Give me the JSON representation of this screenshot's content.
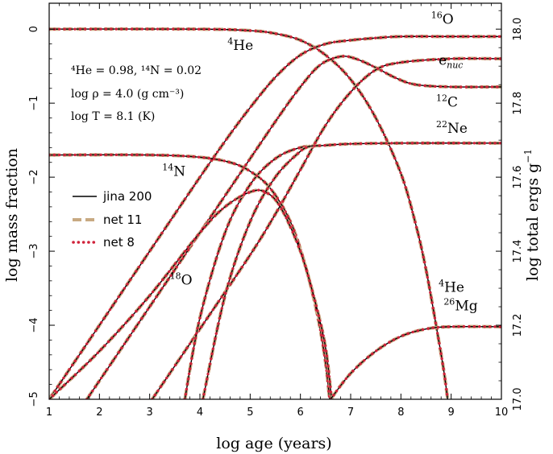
{
  "chart_data": {
    "type": "line",
    "xlabel": "log age (years)",
    "ylabel": "log mass fraction",
    "y2label": "log total ergs g",
    "y2label_sup": "−1",
    "xlim": [
      1,
      10
    ],
    "ylim": [
      -5,
      0.35
    ],
    "y2lim": [
      17.0,
      18.07
    ],
    "xticks": [
      1,
      2,
      3,
      4,
      5,
      6,
      7,
      8,
      9,
      10
    ],
    "yticks": [
      0,
      -1,
      -2,
      -3,
      -4,
      -5
    ],
    "y2ticks": [
      17.0,
      17.2,
      17.4,
      17.6,
      17.8,
      18.0
    ],
    "grid": false,
    "legend_position": "left-middle",
    "colors": {
      "jina200": "#000000",
      "net11": "#c8aa82",
      "net8": "#d0223a"
    },
    "annotations": [
      "⁴He = 0.98, ¹⁴N = 0.02",
      "log ρ = 4.0 (g cm⁻³)",
      "log T = 8.1 (K)"
    ],
    "series": [
      {
        "name": "jina 200",
        "style": "solid"
      },
      {
        "name": "net 11",
        "style": "dashed"
      },
      {
        "name": "net 8",
        "style": "dotted"
      }
    ],
    "curves": [
      {
        "id": "He4",
        "label_iso": "4",
        "label_el": "He",
        "points": [
          [
            1,
            0
          ],
          [
            4,
            0
          ],
          [
            5,
            -0.02
          ],
          [
            5.5,
            -0.06
          ],
          [
            6,
            -0.15
          ],
          [
            6.5,
            -0.35
          ],
          [
            7,
            -0.68
          ],
          [
            7.5,
            -1.2
          ],
          [
            8,
            -1.95
          ],
          [
            8.3,
            -2.65
          ],
          [
            8.5,
            -3.25
          ],
          [
            8.7,
            -4.0
          ],
          [
            8.85,
            -4.6
          ],
          [
            8.93,
            -5
          ]
        ]
      },
      {
        "id": "O16",
        "label_iso": "16",
        "label_el": "O",
        "points": [
          [
            1,
            -5
          ],
          [
            2,
            -4.0
          ],
          [
            3,
            -3.0
          ],
          [
            4,
            -2.0
          ],
          [
            4.6,
            -1.42
          ],
          [
            5,
            -1.06
          ],
          [
            5.5,
            -0.65
          ],
          [
            6,
            -0.35
          ],
          [
            6.5,
            -0.2
          ],
          [
            7,
            -0.15
          ],
          [
            7.5,
            -0.12
          ],
          [
            8,
            -0.1
          ],
          [
            9,
            -0.1
          ],
          [
            10,
            -0.1
          ]
        ]
      },
      {
        "id": "C12",
        "label_iso": "12",
        "label_el": "C",
        "points": [
          [
            1.75,
            -5
          ],
          [
            2.5,
            -4.25
          ],
          [
            3.5,
            -3.25
          ],
          [
            4.5,
            -2.25
          ],
          [
            5.5,
            -1.25
          ],
          [
            6,
            -0.78
          ],
          [
            6.4,
            -0.48
          ],
          [
            6.8,
            -0.37
          ],
          [
            7.1,
            -0.4
          ],
          [
            7.5,
            -0.52
          ],
          [
            7.9,
            -0.66
          ],
          [
            8.3,
            -0.75
          ],
          [
            9,
            -0.78
          ],
          [
            10,
            -0.78
          ]
        ]
      },
      {
        "id": "enuc",
        "label_el": "e",
        "label_sub": "nuc",
        "axis": "right",
        "points": [
          [
            3.05,
            17.0
          ],
          [
            4,
            17.19
          ],
          [
            5,
            17.39
          ],
          [
            5.5,
            17.5
          ],
          [
            6,
            17.62
          ],
          [
            6.5,
            17.74
          ],
          [
            7,
            17.83
          ],
          [
            7.5,
            17.89
          ],
          [
            8,
            17.91
          ],
          [
            9,
            17.92
          ],
          [
            10,
            17.92
          ]
        ]
      },
      {
        "id": "Ne22",
        "label_iso": "22",
        "label_el": "Ne",
        "points": [
          [
            3.7,
            -5
          ],
          [
            4.0,
            -3.9
          ],
          [
            4.5,
            -2.75
          ],
          [
            5,
            -2.1
          ],
          [
            5.5,
            -1.75
          ],
          [
            6,
            -1.6
          ],
          [
            6.5,
            -1.57
          ],
          [
            7,
            -1.55
          ],
          [
            8,
            -1.54
          ],
          [
            10,
            -1.54
          ]
        ]
      },
      {
        "id": "N14",
        "label_iso": "14",
        "label_el": "N",
        "points": [
          [
            1,
            -1.7
          ],
          [
            3,
            -1.7
          ],
          [
            4,
            -1.73
          ],
          [
            4.6,
            -1.8
          ],
          [
            5,
            -1.92
          ],
          [
            5.4,
            -2.15
          ],
          [
            5.8,
            -2.6
          ],
          [
            6.1,
            -3.2
          ],
          [
            6.35,
            -3.9
          ],
          [
            6.5,
            -4.5
          ],
          [
            6.58,
            -5
          ]
        ]
      },
      {
        "id": "O18",
        "label_iso": "18",
        "label_el": "O",
        "points": [
          [
            1,
            -5
          ],
          [
            2,
            -4.35
          ],
          [
            3,
            -3.6
          ],
          [
            4,
            -2.75
          ],
          [
            4.5,
            -2.4
          ],
          [
            5,
            -2.2
          ],
          [
            5.3,
            -2.2
          ],
          [
            5.6,
            -2.4
          ],
          [
            6,
            -3.0
          ],
          [
            6.3,
            -3.7
          ],
          [
            6.5,
            -4.3
          ],
          [
            6.62,
            -5
          ]
        ]
      },
      {
        "id": "Mg26",
        "label_iso": "26",
        "label_el": "Mg",
        "points": [
          [
            6.6,
            -5
          ],
          [
            7,
            -4.65
          ],
          [
            7.5,
            -4.35
          ],
          [
            8,
            -4.15
          ],
          [
            8.5,
            -4.05
          ],
          [
            9,
            -4.02
          ],
          [
            10,
            -4.02
          ]
        ]
      },
      {
        "id": "extra",
        "points": [
          [
            4.06,
            -5
          ],
          [
            4.5,
            -3.6
          ],
          [
            5,
            -2.6
          ],
          [
            5.5,
            -2.0
          ],
          [
            6,
            -1.65
          ],
          [
            6.2,
            -1.58
          ]
        ]
      }
    ],
    "curve_labels": [
      {
        "id": "He4",
        "iso": "4",
        "el": "He",
        "x": 4.55,
        "y": -0.28
      },
      {
        "id": "He4b",
        "iso": "4",
        "el": "He",
        "x": 8.75,
        "y": -3.55
      },
      {
        "id": "O16",
        "iso": "16",
        "el": "O",
        "x": 8.6,
        "y": 0.07
      },
      {
        "id": "enuc",
        "el": "e",
        "sub": "nuc",
        "x": 8.75,
        "y": -0.48
      },
      {
        "id": "C12",
        "iso": "12",
        "el": "C",
        "x": 8.7,
        "y": -1.05
      },
      {
        "id": "Ne22",
        "iso": "22",
        "el": "Ne",
        "x": 8.7,
        "y": -1.4
      },
      {
        "id": "N14",
        "iso": "14",
        "el": "N",
        "x": 3.25,
        "y": -1.98
      },
      {
        "id": "O18",
        "iso": "18",
        "el": "O",
        "x": 3.4,
        "y": -3.45
      },
      {
        "id": "Mg26",
        "iso": "26",
        "el": "Mg",
        "x": 8.85,
        "y": -3.8
      }
    ]
  }
}
